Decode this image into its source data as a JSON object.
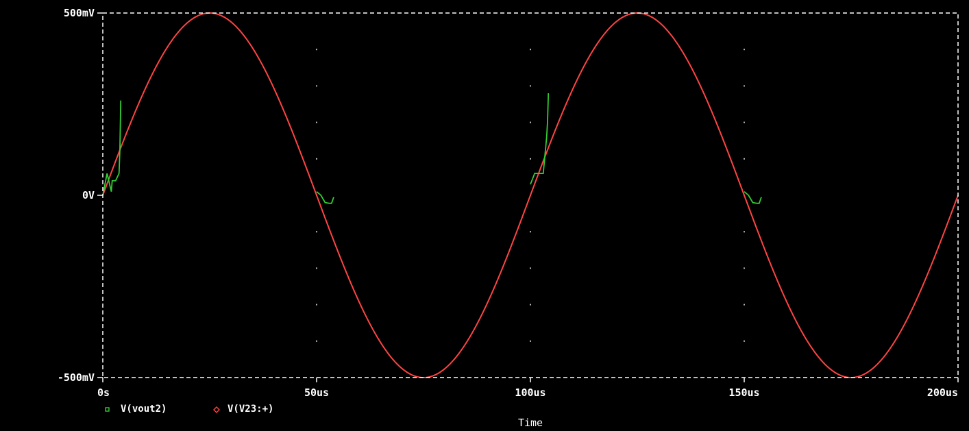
{
  "colors": {
    "background": "#000000",
    "border": "#ffffff",
    "grid": "#bbbbbb",
    "text": "#ffffff"
  },
  "chart_data": {
    "type": "line",
    "title": "",
    "xlabel": "Time",
    "ylabel": "",
    "x_unit": "us",
    "y_unit": "mV",
    "xlim": [
      0,
      200
    ],
    "ylim": [
      -500,
      500
    ],
    "x_ticks": [
      0,
      50,
      100,
      150,
      200
    ],
    "x_tick_labels": [
      "0s",
      "50us",
      "100us",
      "150us",
      "200us"
    ],
    "y_ticks": [
      -500,
      0,
      500
    ],
    "y_tick_labels": [
      "-500mV",
      "0V",
      "500mV"
    ],
    "grid": true,
    "legend_position": "bottom-left",
    "series": [
      {
        "name": "V(vout2)",
        "marker": "square",
        "color": "#33cc33",
        "x": [
          0.0,
          1.0,
          2.0,
          2.2,
          3.0,
          3.8,
          4.0,
          4.2,
          50.0,
          51.0,
          52.0,
          53.0,
          53.5,
          54.0,
          100.0,
          101.0,
          102.0,
          103.0,
          103.8,
          104.0,
          104.2,
          150.0,
          151.0,
          152.0,
          153.0,
          153.5,
          154.0
        ],
        "y": [
          0,
          60,
          10,
          40,
          40,
          60,
          125,
          260,
          10,
          0,
          -20,
          -22,
          -22,
          -5,
          30,
          60,
          60,
          60,
          160,
          200,
          280,
          10,
          0,
          -20,
          -22,
          -22,
          -5
        ]
      },
      {
        "name": "V(V23:+)",
        "marker": "diamond",
        "color": "#ff4444",
        "function": "sine",
        "amplitude_mV": 500,
        "frequency_kHz": 10,
        "phase_deg": 0,
        "x_start": 0,
        "x_end": 200
      }
    ]
  }
}
